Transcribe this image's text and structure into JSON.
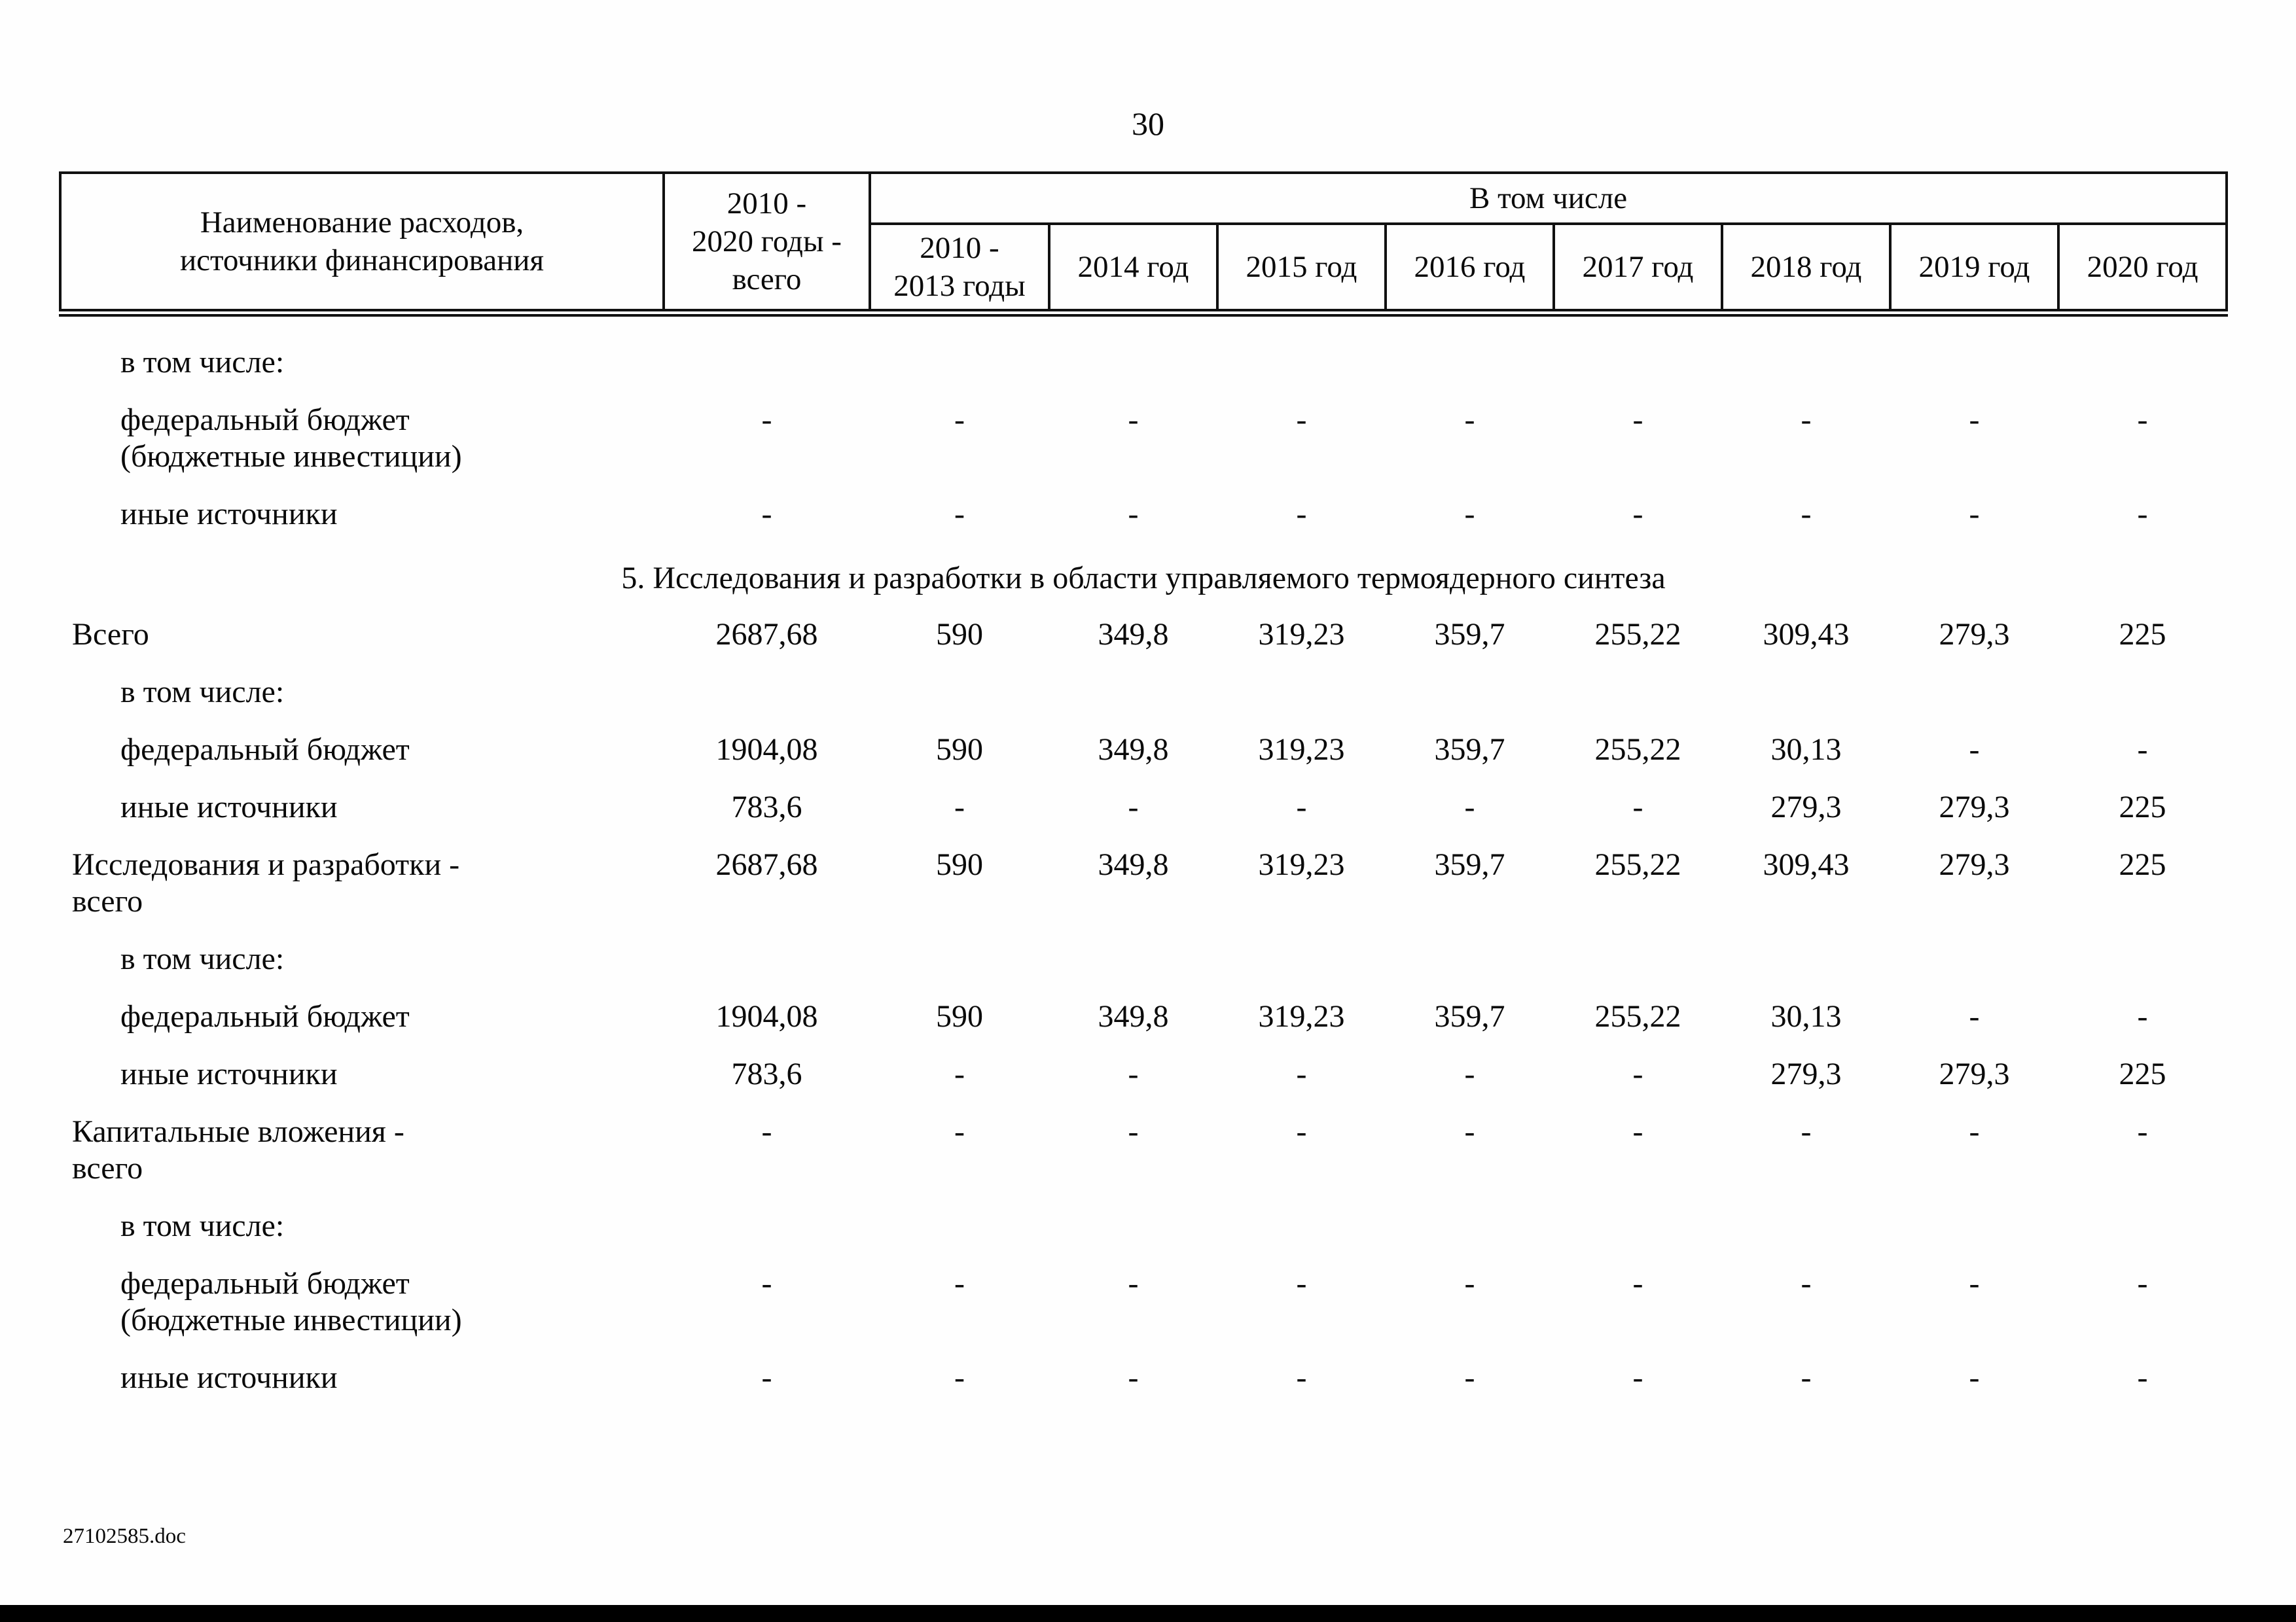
{
  "page": {
    "number": "30",
    "footer_filename": "27102585.doc"
  },
  "table": {
    "header": {
      "name_col": "Наименование расходов,\nисточники финансирования",
      "total_col": "2010 -\n2020 годы -\nвсего",
      "group_label": "В том числе",
      "years": [
        "2010 -\n2013 годы",
        "2014 год",
        "2015 год",
        "2016 год",
        "2017 год",
        "2018 год",
        "2019 год",
        "2020 год"
      ]
    },
    "rows": [
      {
        "type": "data",
        "indent": 1,
        "label": "в том числе:",
        "values": [
          "",
          "",
          "",
          "",
          "",
          "",
          "",
          "",
          ""
        ]
      },
      {
        "type": "data",
        "indent": 1,
        "label": "федеральный бюджет\n(бюджетные инвестиции)",
        "values": [
          "-",
          "-",
          "-",
          "-",
          "-",
          "-",
          "-",
          "-",
          "-"
        ]
      },
      {
        "type": "data",
        "indent": 1,
        "label": "иные источники",
        "values": [
          "-",
          "-",
          "-",
          "-",
          "-",
          "-",
          "-",
          "-",
          "-"
        ]
      },
      {
        "type": "section",
        "label": "5. Исследования и разработки в области управляемого термоядерного синтеза"
      },
      {
        "type": "data",
        "indent": 0,
        "label": "Всего",
        "values": [
          "2687,68",
          "590",
          "349,8",
          "319,23",
          "359,7",
          "255,22",
          "309,43",
          "279,3",
          "225"
        ]
      },
      {
        "type": "data",
        "indent": 1,
        "label": "в том числе:",
        "values": [
          "",
          "",
          "",
          "",
          "",
          "",
          "",
          "",
          ""
        ]
      },
      {
        "type": "data",
        "indent": 1,
        "label": "федеральный бюджет",
        "values": [
          "1904,08",
          "590",
          "349,8",
          "319,23",
          "359,7",
          "255,22",
          "30,13",
          "-",
          "-"
        ]
      },
      {
        "type": "data",
        "indent": 1,
        "label": "иные источники",
        "values": [
          "783,6",
          "-",
          "-",
          "-",
          "-",
          "-",
          "279,3",
          "279,3",
          "225"
        ]
      },
      {
        "type": "data",
        "indent": 0,
        "label": "Исследования и разработки -\nвсего",
        "values": [
          "2687,68",
          "590",
          "349,8",
          "319,23",
          "359,7",
          "255,22",
          "309,43",
          "279,3",
          "225"
        ]
      },
      {
        "type": "data",
        "indent": 1,
        "label": "в том числе:",
        "values": [
          "",
          "",
          "",
          "",
          "",
          "",
          "",
          "",
          ""
        ]
      },
      {
        "type": "data",
        "indent": 1,
        "label": "федеральный бюджет",
        "values": [
          "1904,08",
          "590",
          "349,8",
          "319,23",
          "359,7",
          "255,22",
          "30,13",
          "-",
          "-"
        ]
      },
      {
        "type": "data",
        "indent": 1,
        "label": "иные источники",
        "values": [
          "783,6",
          "-",
          "-",
          "-",
          "-",
          "-",
          "279,3",
          "279,3",
          "225"
        ]
      },
      {
        "type": "data",
        "indent": 0,
        "label": "Капитальные вложения -\nвсего",
        "values": [
          "-",
          "-",
          "-",
          "-",
          "-",
          "-",
          "-",
          "-",
          "-"
        ]
      },
      {
        "type": "data",
        "indent": 1,
        "label": "в том числе:",
        "values": [
          "",
          "",
          "",
          "",
          "",
          "",
          "",
          "",
          ""
        ]
      },
      {
        "type": "data",
        "indent": 1,
        "label": "федеральный бюджет\n(бюджетные инвестиции)",
        "values": [
          "-",
          "-",
          "-",
          "-",
          "-",
          "-",
          "-",
          "-",
          "-"
        ]
      },
      {
        "type": "data",
        "indent": 1,
        "label": "иные источники",
        "values": [
          "-",
          "-",
          "-",
          "-",
          "-",
          "-",
          "-",
          "-",
          "-"
        ]
      }
    ]
  }
}
